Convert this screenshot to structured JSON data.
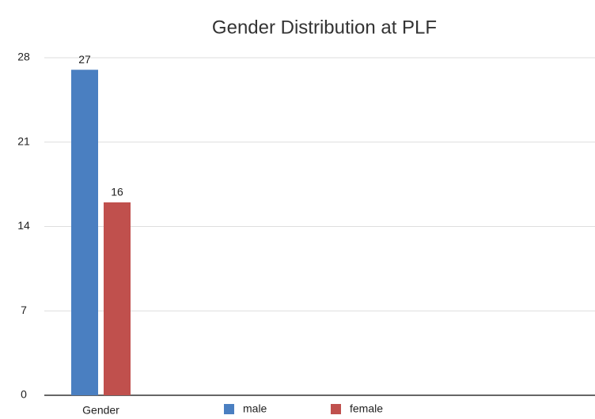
{
  "chart_data": {
    "type": "bar",
    "title": "Gender Distribution at PLF",
    "categories": [
      "Gender"
    ],
    "series": [
      {
        "name": "male",
        "color": "#4a7fc1",
        "values": [
          27
        ]
      },
      {
        "name": "female",
        "color": "#c0504d",
        "values": [
          16
        ]
      }
    ],
    "ylim": [
      0,
      28
    ],
    "yticks": [
      0,
      7,
      14,
      21,
      28
    ],
    "grid": true,
    "legend": "bottom"
  }
}
